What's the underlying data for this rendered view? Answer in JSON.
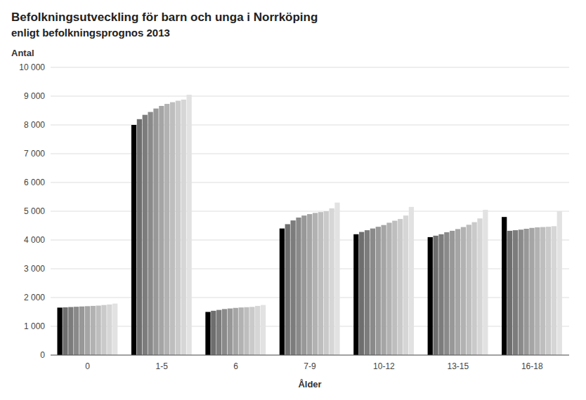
{
  "chart_data": {
    "type": "bar",
    "title": "Befolkningsutveckling för barn och unga i Norrköping",
    "subtitle": "enligt befolkningsprognos 2013",
    "y_label": "Antal",
    "x_label": "Ålder",
    "categories": [
      "0",
      "1-5",
      "6",
      "7-9",
      "10-12",
      "13-15",
      "16-18"
    ],
    "series": [
      {
        "color": "#000000",
        "values": [
          1650,
          8000,
          1500,
          4400,
          4200,
          4100,
          4800
        ]
      },
      {
        "color": "#6e6e6e",
        "values": [
          1660,
          8200,
          1540,
          4550,
          4280,
          4150,
          4320
        ]
      },
      {
        "color": "#7c7c7c",
        "values": [
          1670,
          8350,
          1570,
          4680,
          4340,
          4200,
          4340
        ]
      },
      {
        "color": "#8a8a8a",
        "values": [
          1680,
          8450,
          1600,
          4780,
          4400,
          4270,
          4360
        ]
      },
      {
        "color": "#989898",
        "values": [
          1690,
          8570,
          1620,
          4850,
          4460,
          4320,
          4390
        ]
      },
      {
        "color": "#a5a5a5",
        "values": [
          1700,
          8660,
          1640,
          4900,
          4520,
          4380,
          4420
        ]
      },
      {
        "color": "#b2b2b2",
        "values": [
          1710,
          8730,
          1655,
          4940,
          4600,
          4450,
          4440
        ]
      },
      {
        "color": "#bebebe",
        "values": [
          1720,
          8790,
          1665,
          4970,
          4670,
          4530,
          4450
        ]
      },
      {
        "color": "#cacaca",
        "values": [
          1740,
          8840,
          1675,
          5000,
          4730,
          4620,
          4460
        ]
      },
      {
        "color": "#d6d6d6",
        "values": [
          1760,
          8880,
          1710,
          5100,
          4850,
          4750,
          4480
        ]
      },
      {
        "color": "#e2e2e2",
        "values": [
          1790,
          9050,
          1740,
          5300,
          5150,
          5050,
          5000
        ]
      }
    ],
    "ylim": [
      0,
      10000
    ],
    "yticks": [
      0,
      {
        "value": 1000,
        "label": "1 000"
      },
      {
        "value": 2000,
        "label": "2 000"
      },
      {
        "value": 3000,
        "label": "3 000"
      },
      {
        "value": 4000,
        "label": "4 000"
      },
      {
        "value": 5000,
        "label": "5 000"
      },
      {
        "value": 6000,
        "label": "6 000"
      },
      {
        "value": 7000,
        "label": "7 000"
      },
      {
        "value": 8000,
        "label": "8 000"
      },
      {
        "value": 9000,
        "label": "9 000"
      },
      {
        "value": 10000,
        "label": "10 000"
      }
    ],
    "grid": true
  }
}
